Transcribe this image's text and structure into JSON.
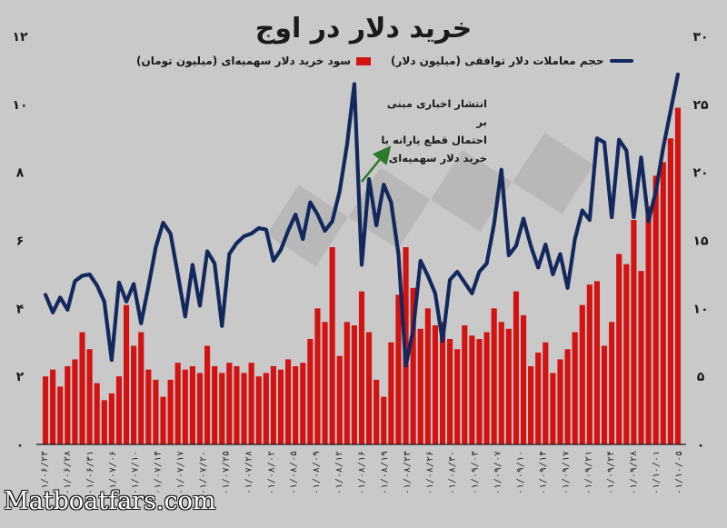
{
  "title": "خرید دلار در اوج",
  "legend": {
    "volume_label": "حجم معاملات دلار توافقی (میلیون دلار)",
    "profit_label": "سود خرید دلار سهمیه‌ای (میلیون تومان)"
  },
  "annotation": {
    "line1": "انتشار اخباری مبنی بر",
    "line2": "احتمال قطع یارانه با",
    "line3": "خرید دلار سهمیه‌ای"
  },
  "watermark": "Matboatfars.com",
  "colors": {
    "line": "#13295e",
    "bar": "#d31212",
    "background": "#c9c9c9",
    "arrow": "#2d7a2d"
  },
  "chart_data": {
    "type": "bar+line",
    "left_axis": {
      "ticks": [
        "۰",
        "۲",
        "۴",
        "۶",
        "۸",
        "۱۰",
        "۱۲"
      ],
      "ylim": [
        0,
        12
      ]
    },
    "right_axis": {
      "ticks": [
        "۰",
        "۵",
        "۱۰",
        "۱۵",
        "۲۰",
        "۲۵",
        "۳۰"
      ],
      "ylim": [
        0,
        30
      ]
    },
    "x_tick_labels": [
      "۰۱/۰۶/۲۳",
      "۰۱/۰۶/۲۸",
      "۰۱/۰۶/۳۱",
      "۰۱/۰۷/۰۶",
      "۰۱/۰۷/۱۰",
      "۰۱/۰۷/۱۴",
      "۰۱/۰۷/۱۷",
      "۰۱/۰۷/۲۰",
      "۰۱/۰۷/۲۵",
      "۰۱/۰۷/۲۸",
      "۰۱/۰۸/۰۲",
      "۰۱/۰۸/۰۵",
      "۰۱/۰۸/۰۹",
      "۰۱/۰۸/۱۲",
      "۰۱/۰۸/۱۶",
      "۰۱/۰۸/۱۹",
      "۰۱/۰۸/۲۳",
      "۰۱/۰۸/۲۶",
      "۰۱/۰۸/۳۰",
      "۰۱/۰۹/۰۳",
      "۰۱/۰۹/۰۷",
      "۰۱/۰۹/۱۰",
      "۰۱/۰۹/۱۴",
      "۰۱/۰۹/۱۷",
      "۰۱/۰۹/۲۱",
      "۰۱/۰۹/۲۴",
      "۰۱/۰۹/۲۸",
      "۰۱/۱۰/۰۱",
      "۰۱/۱۰/۰۵"
    ],
    "bar_series": {
      "axis": "left",
      "values": [
        2.0,
        2.2,
        1.7,
        2.3,
        2.5,
        3.3,
        2.8,
        1.8,
        1.3,
        1.5,
        2.0,
        4.1,
        2.9,
        3.3,
        2.2,
        1.9,
        1.4,
        1.9,
        2.4,
        2.2,
        2.3,
        2.1,
        2.9,
        2.3,
        2.1,
        2.4,
        2.3,
        2.1,
        2.4,
        2.0,
        2.1,
        2.3,
        2.2,
        2.5,
        2.3,
        2.4,
        3.1,
        4.0,
        3.6,
        5.8,
        2.6,
        3.6,
        3.5,
        4.5,
        3.3,
        1.9,
        1.4,
        3.0,
        4.4,
        5.8,
        4.6,
        3.4,
        4.0,
        3.5,
        3.6,
        3.1,
        2.8,
        3.5,
        3.2,
        3.1,
        3.3,
        4.0,
        3.6,
        3.4,
        4.5,
        3.8,
        2.3,
        2.7,
        3.0,
        2.1,
        2.5,
        2.8,
        3.3,
        4.1,
        4.7,
        4.8,
        2.9,
        3.6,
        5.6,
        5.3,
        6.6,
        5.1,
        7.0,
        7.9,
        8.3,
        9.0,
        9.9
      ]
    },
    "line_series": {
      "axis": "right",
      "values": [
        11.0,
        9.7,
        10.8,
        9.9,
        12.0,
        12.4,
        12.5,
        11.7,
        10.5,
        6.2,
        11.9,
        10.5,
        11.8,
        8.9,
        11.6,
        14.5,
        16.3,
        15.5,
        12.5,
        9.4,
        13.2,
        10.2,
        14.2,
        13.3,
        8.7,
        14.0,
        14.8,
        15.3,
        15.5,
        15.9,
        15.8,
        13.5,
        14.3,
        15.7,
        16.9,
        15.1,
        17.8,
        16.9,
        15.7,
        16.4,
        18.6,
        22.0,
        26.5,
        13.2,
        19.5,
        16.1,
        19.1,
        17.8,
        14.0,
        5.8,
        8.4,
        13.5,
        12.4,
        11.1,
        7.6,
        12.1,
        12.7,
        11.9,
        11.1,
        12.7,
        13.3,
        16.2,
        20.2,
        13.9,
        14.6,
        16.6,
        14.6,
        13.0,
        14.7,
        12.5,
        14.0,
        11.5,
        15.1,
        17.2,
        16.5,
        22.5,
        22.2,
        16.7,
        22.4,
        21.6,
        16.7,
        21.1,
        16.4,
        18.6,
        21.8,
        24.5,
        27.2
      ]
    }
  }
}
